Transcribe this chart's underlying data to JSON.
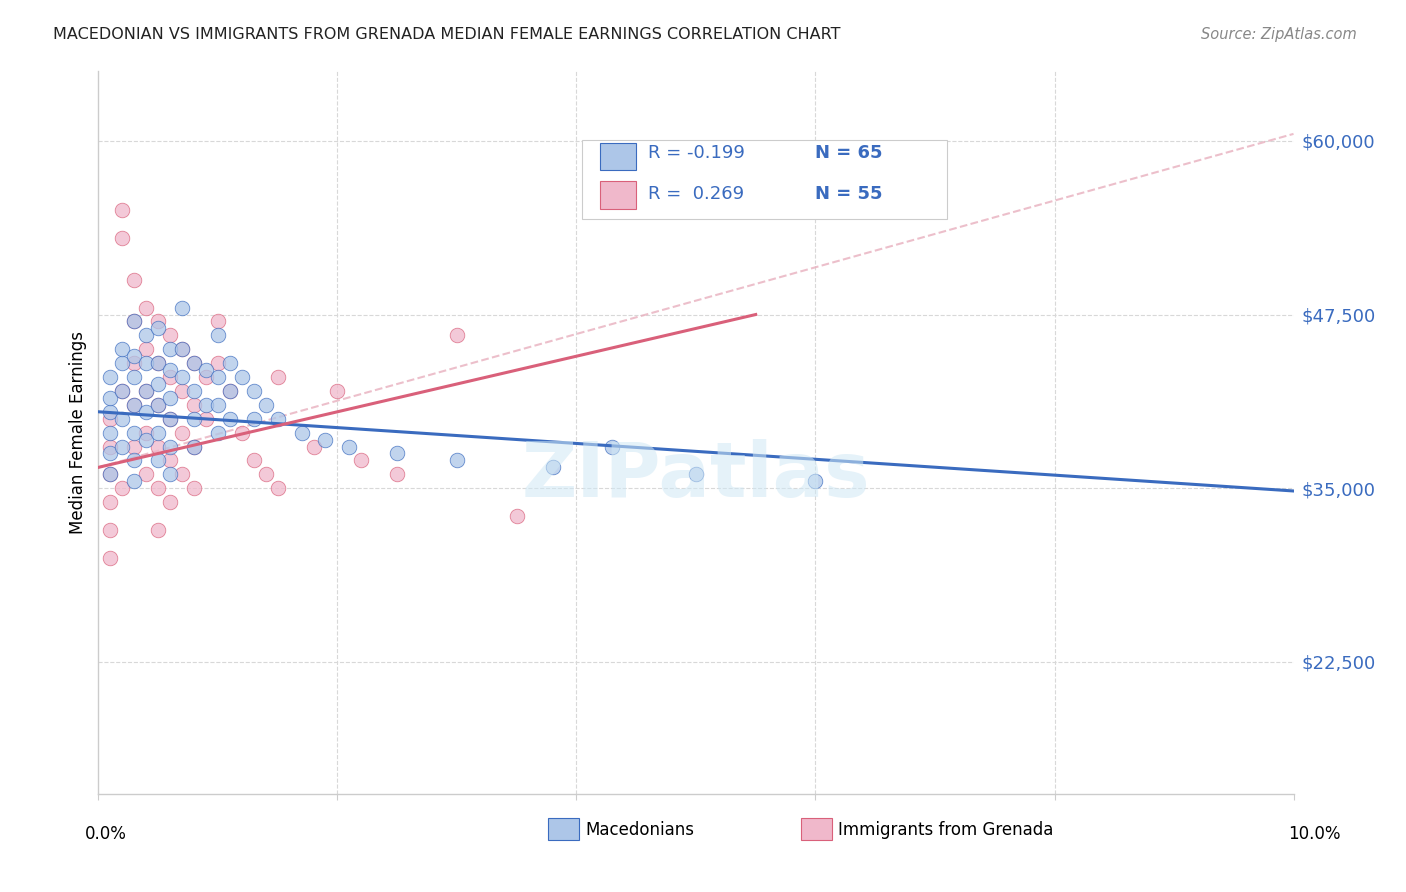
{
  "title": "MACEDONIAN VS IMMIGRANTS FROM GRENADA MEDIAN FEMALE EARNINGS CORRELATION CHART",
  "source": "Source: ZipAtlas.com",
  "ylabel": "Median Female Earnings",
  "ytick_labels": [
    "$22,500",
    "$35,000",
    "$47,500",
    "$60,000"
  ],
  "ytick_values": [
    22500,
    35000,
    47500,
    60000
  ],
  "ymin": 13000,
  "ymax": 65000,
  "xmin": 0.0,
  "xmax": 0.1,
  "color_macedonian": "#adc6e8",
  "color_grenada": "#f0b8cb",
  "color_macedonian_line": "#3a6bbf",
  "color_grenada_line": "#d9607a",
  "color_grenada_dashed": "#e8b0be",
  "watermark": "ZIPatlas",
  "macedonian_trend": [
    0.0,
    0.1,
    40500,
    34800
  ],
  "grenada_solid_trend": [
    0.0,
    0.055,
    36500,
    47500
  ],
  "grenada_dashed_trend": [
    0.0,
    0.1,
    36500,
    60500
  ],
  "macedonian_points": [
    [
      0.001,
      40500
    ],
    [
      0.001,
      39000
    ],
    [
      0.001,
      37500
    ],
    [
      0.001,
      36000
    ],
    [
      0.001,
      43000
    ],
    [
      0.001,
      41500
    ],
    [
      0.002,
      44000
    ],
    [
      0.002,
      42000
    ],
    [
      0.002,
      40000
    ],
    [
      0.002,
      38000
    ],
    [
      0.002,
      45000
    ],
    [
      0.003,
      47000
    ],
    [
      0.003,
      44500
    ],
    [
      0.003,
      43000
    ],
    [
      0.003,
      41000
    ],
    [
      0.003,
      39000
    ],
    [
      0.003,
      37000
    ],
    [
      0.003,
      35500
    ],
    [
      0.004,
      46000
    ],
    [
      0.004,
      44000
    ],
    [
      0.004,
      42000
    ],
    [
      0.004,
      40500
    ],
    [
      0.004,
      38500
    ],
    [
      0.005,
      46500
    ],
    [
      0.005,
      44000
    ],
    [
      0.005,
      42500
    ],
    [
      0.005,
      41000
    ],
    [
      0.005,
      39000
    ],
    [
      0.005,
      37000
    ],
    [
      0.006,
      45000
    ],
    [
      0.006,
      43500
    ],
    [
      0.006,
      41500
    ],
    [
      0.006,
      40000
    ],
    [
      0.006,
      38000
    ],
    [
      0.006,
      36000
    ],
    [
      0.007,
      48000
    ],
    [
      0.007,
      45000
    ],
    [
      0.007,
      43000
    ],
    [
      0.008,
      44000
    ],
    [
      0.008,
      42000
    ],
    [
      0.008,
      40000
    ],
    [
      0.008,
      38000
    ],
    [
      0.009,
      43500
    ],
    [
      0.009,
      41000
    ],
    [
      0.01,
      46000
    ],
    [
      0.01,
      43000
    ],
    [
      0.01,
      41000
    ],
    [
      0.01,
      39000
    ],
    [
      0.011,
      44000
    ],
    [
      0.011,
      42000
    ],
    [
      0.011,
      40000
    ],
    [
      0.012,
      43000
    ],
    [
      0.013,
      42000
    ],
    [
      0.013,
      40000
    ],
    [
      0.014,
      41000
    ],
    [
      0.015,
      40000
    ],
    [
      0.017,
      39000
    ],
    [
      0.019,
      38500
    ],
    [
      0.021,
      38000
    ],
    [
      0.025,
      37500
    ],
    [
      0.03,
      37000
    ],
    [
      0.038,
      36500
    ],
    [
      0.043,
      38000
    ],
    [
      0.05,
      36000
    ],
    [
      0.06,
      35500
    ]
  ],
  "grenada_points": [
    [
      0.001,
      36000
    ],
    [
      0.001,
      34000
    ],
    [
      0.001,
      32000
    ],
    [
      0.001,
      30000
    ],
    [
      0.001,
      38000
    ],
    [
      0.001,
      40000
    ],
    [
      0.002,
      55000
    ],
    [
      0.002,
      53000
    ],
    [
      0.002,
      42000
    ],
    [
      0.002,
      35000
    ],
    [
      0.003,
      50000
    ],
    [
      0.003,
      47000
    ],
    [
      0.003,
      44000
    ],
    [
      0.003,
      41000
    ],
    [
      0.003,
      38000
    ],
    [
      0.004,
      48000
    ],
    [
      0.004,
      45000
    ],
    [
      0.004,
      42000
    ],
    [
      0.004,
      39000
    ],
    [
      0.004,
      36000
    ],
    [
      0.005,
      47000
    ],
    [
      0.005,
      44000
    ],
    [
      0.005,
      41000
    ],
    [
      0.005,
      38000
    ],
    [
      0.005,
      35000
    ],
    [
      0.005,
      32000
    ],
    [
      0.006,
      46000
    ],
    [
      0.006,
      43000
    ],
    [
      0.006,
      40000
    ],
    [
      0.006,
      37000
    ],
    [
      0.006,
      34000
    ],
    [
      0.007,
      45000
    ],
    [
      0.007,
      42000
    ],
    [
      0.007,
      39000
    ],
    [
      0.007,
      36000
    ],
    [
      0.008,
      44000
    ],
    [
      0.008,
      41000
    ],
    [
      0.008,
      38000
    ],
    [
      0.008,
      35000
    ],
    [
      0.009,
      43000
    ],
    [
      0.009,
      40000
    ],
    [
      0.01,
      47000
    ],
    [
      0.01,
      44000
    ],
    [
      0.011,
      42000
    ],
    [
      0.012,
      39000
    ],
    [
      0.013,
      37000
    ],
    [
      0.014,
      36000
    ],
    [
      0.015,
      43000
    ],
    [
      0.015,
      35000
    ],
    [
      0.018,
      38000
    ],
    [
      0.02,
      42000
    ],
    [
      0.022,
      37000
    ],
    [
      0.025,
      36000
    ],
    [
      0.03,
      46000
    ],
    [
      0.035,
      33000
    ]
  ]
}
